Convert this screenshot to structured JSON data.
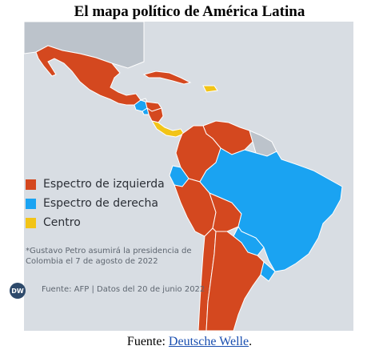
{
  "title": "El mapa político de América Latina",
  "legend": [
    {
      "label": "Espectro de izquierda",
      "color": "#d4481f"
    },
    {
      "label": "Espectro de derecha",
      "color": "#1aa3f2"
    },
    {
      "label": "Centro",
      "color": "#f2c417"
    }
  ],
  "footnote": "*Gustavo Petro asumirá la presidencia de Colombia el 7 de agosto de 2022",
  "logo": "DW",
  "credit": "Fuente:  AFP | Datos del 20 de junio 2022",
  "source": {
    "prefix": "Fuente: ",
    "link_text": "Deutsche Welle",
    "suffix": "."
  },
  "colors": {
    "other_land": "#bcc3cb",
    "ocean": "#d8dde3",
    "border": "#ffffff"
  }
}
